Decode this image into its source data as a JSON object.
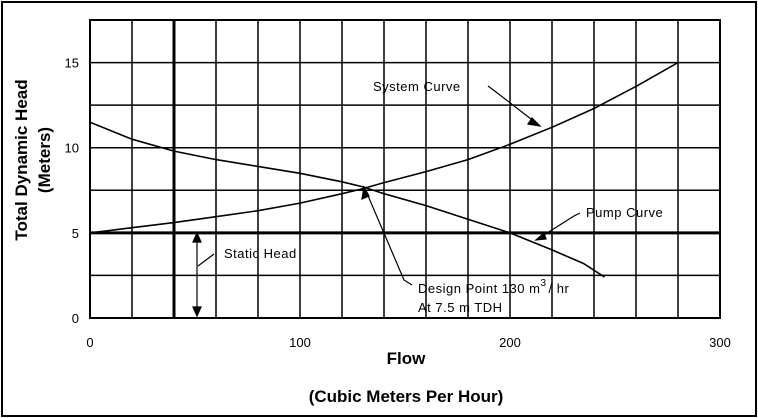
{
  "chart_data": {
    "type": "line",
    "xlabel": "Flow",
    "xlabel_units": "(Cubic Meters Per Hour)",
    "ylabel": "Total Dynamic Head",
    "ylabel_units": "(Meters)",
    "xlim": [
      0,
      300
    ],
    "ylim": [
      0,
      17.5
    ],
    "x_ticks": [
      "0",
      "100",
      "200",
      "300"
    ],
    "y_ticks": [
      "0",
      "5",
      "10",
      "15"
    ],
    "grid": true,
    "series": [
      {
        "name": "System Curve",
        "x": [
          0,
          20,
          40,
          60,
          80,
          100,
          120,
          130,
          140,
          160,
          180,
          200,
          220,
          240,
          260,
          280
        ],
        "y": [
          5,
          5.3,
          5.6,
          5.95,
          6.3,
          6.75,
          7.3,
          7.6,
          7.95,
          8.6,
          9.3,
          10.2,
          11.2,
          12.3,
          13.6,
          15
        ]
      },
      {
        "name": "Pump Curve",
        "x": [
          0,
          10,
          20,
          40,
          60,
          80,
          100,
          120,
          130,
          140,
          160,
          180,
          200,
          220,
          235,
          245
        ],
        "y": [
          11.5,
          11.0,
          10.5,
          9.8,
          9.3,
          8.9,
          8.5,
          8.0,
          7.7,
          7.3,
          6.6,
          5.8,
          5.0,
          4.0,
          3.2,
          2.4
        ]
      }
    ],
    "static_head": 5,
    "annotations": {
      "system_curve": "System Curve",
      "pump_curve": "Pump Curve",
      "static_head": "Static Head",
      "design_point_line1": "Design Point 130 m",
      "design_point_sup": "3",
      "design_point_unit": "/ hr",
      "design_point_line2": "At 7.5 m TDH"
    }
  }
}
